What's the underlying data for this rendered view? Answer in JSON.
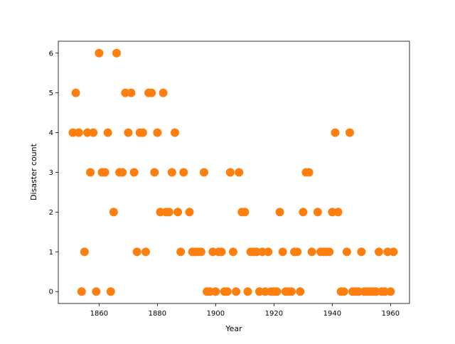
{
  "chart_data": {
    "type": "scatter",
    "xlabel": "Year",
    "ylabel": "Disaster count",
    "x": [
      1851,
      1852,
      1853,
      1854,
      1855,
      1856,
      1857,
      1858,
      1859,
      1860,
      1861,
      1862,
      1863,
      1864,
      1865,
      1866,
      1867,
      1868,
      1869,
      1870,
      1871,
      1872,
      1873,
      1874,
      1875,
      1876,
      1877,
      1878,
      1879,
      1880,
      1881,
      1882,
      1883,
      1884,
      1885,
      1886,
      1887,
      1888,
      1889,
      1890,
      1891,
      1892,
      1893,
      1894,
      1895,
      1896,
      1897,
      1898,
      1899,
      1900,
      1901,
      1902,
      1903,
      1904,
      1905,
      1906,
      1907,
      1908,
      1909,
      1910,
      1911,
      1912,
      1913,
      1914,
      1915,
      1916,
      1917,
      1918,
      1919,
      1920,
      1921,
      1922,
      1923,
      1924,
      1925,
      1926,
      1927,
      1928,
      1929,
      1930,
      1931,
      1932,
      1933,
      1934,
      1935,
      1936,
      1937,
      1938,
      1939,
      1940,
      1941,
      1942,
      1943,
      1944,
      1945,
      1946,
      1947,
      1948,
      1949,
      1950,
      1951,
      1952,
      1953,
      1954,
      1955,
      1956,
      1957,
      1958,
      1959,
      1960,
      1961
    ],
    "values": [
      4,
      5,
      4,
      0,
      1,
      4,
      3,
      4,
      0,
      6,
      3,
      3,
      4,
      0,
      2,
      6,
      3,
      3,
      5,
      4,
      5,
      3,
      1,
      4,
      4,
      1,
      5,
      5,
      3,
      4,
      2,
      5,
      2,
      2,
      3,
      4,
      2,
      1,
      3,
      null,
      2,
      1,
      1,
      1,
      1,
      3,
      0,
      0,
      1,
      0,
      1,
      1,
      0,
      0,
      3,
      1,
      0,
      3,
      2,
      2,
      0,
      1,
      1,
      1,
      0,
      1,
      0,
      1,
      0,
      0,
      0,
      2,
      1,
      0,
      0,
      0,
      1,
      1,
      0,
      2,
      3,
      3,
      1,
      null,
      2,
      1,
      1,
      1,
      1,
      2,
      4,
      2,
      0,
      0,
      1,
      4,
      0,
      0,
      0,
      1,
      0,
      0,
      0,
      0,
      0,
      1,
      0,
      0,
      1,
      0,
      1
    ],
    "color": "#ff7f0e",
    "xlim": [
      1846,
      1966.5
    ],
    "ylim": [
      -0.3,
      6.3
    ],
    "xticks": [
      1860,
      1880,
      1900,
      1920,
      1940,
      1960
    ],
    "yticks": [
      0,
      1,
      2,
      3,
      4,
      5,
      6
    ]
  }
}
